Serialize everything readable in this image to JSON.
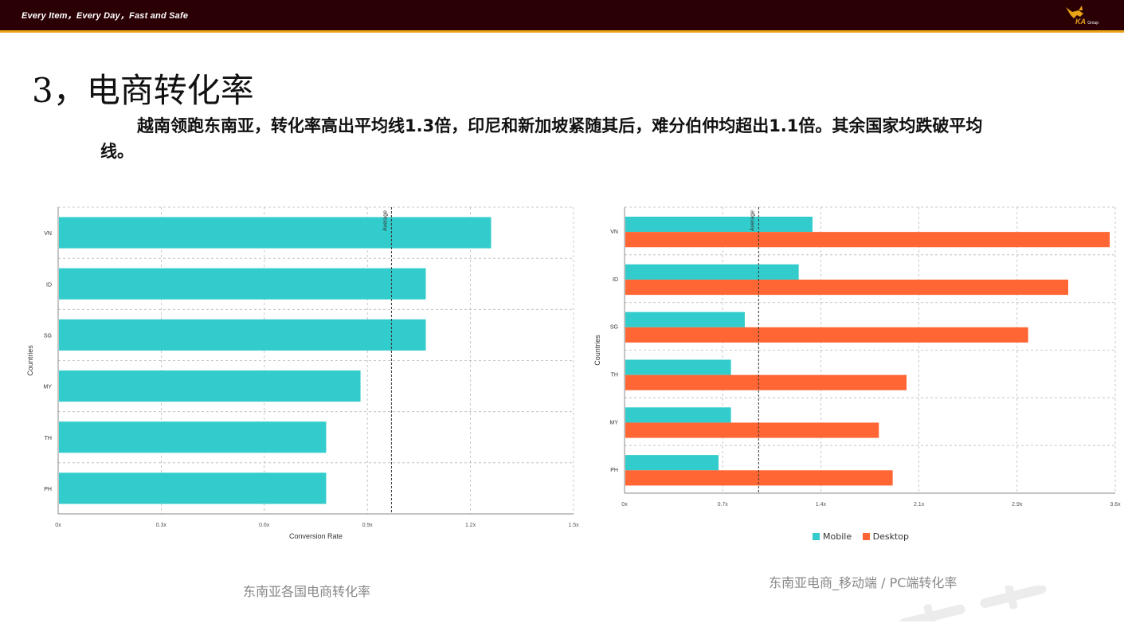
{
  "header": {
    "slogan": "Every Item，Every Day，Fast and Safe",
    "logo_text": "KA",
    "logo_sub": "Group"
  },
  "slide": {
    "title": "3，电商转化率",
    "description": "越南领跑东南亚，转化率高出平均线1.3倍，印尼和新加坡紧随其后，难分伯仲均超出1.1倍。其余国家均跌破平均线。"
  },
  "colors": {
    "mobile": "#33cccc",
    "desktop": "#ff6633",
    "accent": "#e8a317",
    "header_bg": "#2a0004"
  },
  "chart_data": [
    {
      "type": "bar",
      "orientation": "horizontal",
      "categories": [
        "VN",
        "ID",
        "SG",
        "MY",
        "TH",
        "PH"
      ],
      "values": [
        1.26,
        1.07,
        1.07,
        0.88,
        0.78,
        0.78
      ],
      "xlabel": "Conversion Rate",
      "ylabel": "Countries",
      "xticks": [
        "0x",
        "0.3x",
        "0.6x",
        "0.9x",
        "1.2x",
        "1.5x"
      ],
      "xlim": [
        0,
        1.5
      ],
      "average": 0.97,
      "average_label": "Average",
      "grid": true,
      "caption": "东南亚各国电商转化率"
    },
    {
      "type": "bar",
      "orientation": "horizontal",
      "categories": [
        "VN",
        "ID",
        "SG",
        "TH",
        "MY",
        "PH"
      ],
      "series": [
        {
          "name": "Mobile",
          "values": [
            1.36,
            1.26,
            0.87,
            0.77,
            0.77,
            0.68
          ]
        },
        {
          "name": "Desktop",
          "values": [
            3.51,
            3.21,
            2.92,
            2.04,
            1.84,
            1.94
          ]
        }
      ],
      "xlabel": "Conversion Rate",
      "ylabel": "Countries",
      "xticks": [
        "0x",
        "0.7x",
        "1.4x",
        "2.1x",
        "2.9x",
        "3.6x"
      ],
      "xlim": [
        0,
        3.55
      ],
      "average": 0.97,
      "average_label": "Average",
      "grid": true,
      "legend_position": "bottom",
      "caption": "东南亚电商_移动端 / PC端转化率"
    }
  ]
}
